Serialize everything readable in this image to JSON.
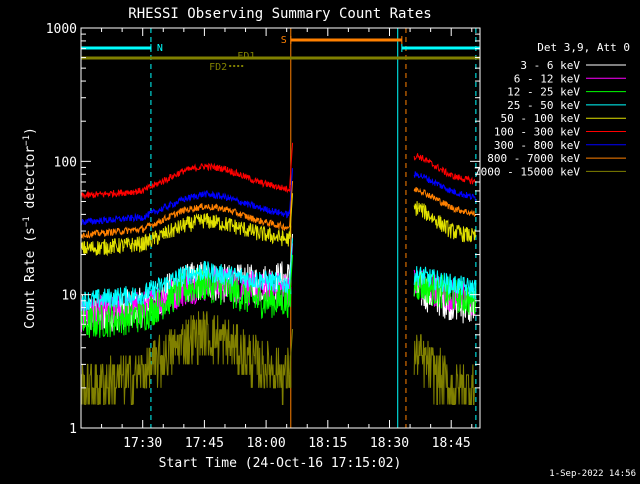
{
  "chart_data": {
    "type": "line",
    "title": "RHESSI Observing Summary Count Rates",
    "xlabel": "Start Time (24-Oct-16 17:15:02)",
    "ylabel": "Count Rate (s⁻¹ detector⁻¹)",
    "yscale": "log",
    "ylim": [
      1,
      1000
    ],
    "xlim": [
      "17:15",
      "18:52"
    ],
    "x_ticks": [
      "17:30",
      "17:45",
      "18:00",
      "18:15",
      "18:30",
      "18:45"
    ],
    "y_ticks": [
      "1",
      "10",
      "100",
      "1000"
    ],
    "timestamp": "1-Sep-2022 14:56",
    "legend": {
      "placement": "top-right",
      "header": "Det 3,9, Att 0",
      "entries": [
        {
          "label": "3 - 6 keV",
          "color": "#ffffff"
        },
        {
          "label": "6 - 12 keV",
          "color": "#ff00ff"
        },
        {
          "label": "12 - 25 keV",
          "color": "#00ff00"
        },
        {
          "label": "25 - 50 keV",
          "color": "#00ffff"
        },
        {
          "label": "50 - 100 keV",
          "color": "#e0e000"
        },
        {
          "label": "100 - 300 keV",
          "color": "#ff0000"
        },
        {
          "label": "300 - 800 keV",
          "color": "#0000ff"
        },
        {
          "label": "800 - 7000 keV",
          "color": "#ff8000"
        },
        {
          "label": "7000 - 15000 keV",
          "color": "#808000"
        }
      ]
    },
    "state_flags": [
      {
        "label": "N",
        "color": "#00ffff",
        "segments": [
          [
            "17:15",
            "17:32"
          ],
          [
            "18:33",
            "18:52"
          ]
        ]
      },
      {
        "label": "S",
        "color": "#ff8000",
        "segments": [
          [
            "18:06",
            "18:33"
          ]
        ]
      },
      {
        "label": "FD1",
        "color": "#808000",
        "segments": [
          [
            "17:15",
            "18:52"
          ]
        ]
      },
      {
        "label": "FD2",
        "color": "#808000",
        "segments": [
          [
            "17:52",
            "17:53"
          ]
        ]
      }
    ],
    "vertical_markers": [
      {
        "time": "17:15",
        "color": "#00ffff",
        "style": "solid"
      },
      {
        "time": "17:32",
        "color": "#00ffff",
        "style": "dashed"
      },
      {
        "time": "18:06",
        "color": "#ff8000",
        "style": "solid"
      },
      {
        "time": "18:32",
        "color": "#00ffff",
        "style": "solid"
      },
      {
        "time": "18:34",
        "color": "#ff8000",
        "style": "dashed"
      },
      {
        "time": "18:51",
        "color": "#00ffff",
        "style": "dashed"
      }
    ],
    "series": [
      {
        "name": "3 - 6 keV",
        "color": "#ffffff",
        "points": [
          [
            "17:15",
            7
          ],
          [
            "17:30",
            8
          ],
          [
            "17:40",
            12
          ],
          [
            "17:45",
            13
          ],
          [
            "17:50",
            12
          ],
          [
            "17:58",
            12
          ],
          [
            "18:05",
            13
          ],
          [
            "18:37",
            11
          ],
          [
            "18:45",
            9
          ],
          [
            "18:51",
            8
          ]
        ]
      },
      {
        "name": "6 - 12 keV",
        "color": "#ff00ff",
        "points": [
          [
            "17:15",
            7
          ],
          [
            "17:30",
            8
          ],
          [
            "17:40",
            11
          ],
          [
            "17:45",
            12
          ],
          [
            "17:50",
            12
          ],
          [
            "17:58",
            11
          ],
          [
            "18:05",
            11
          ],
          [
            "18:37",
            12
          ],
          [
            "18:45",
            10
          ],
          [
            "18:51",
            9
          ]
        ]
      },
      {
        "name": "12 - 25 keV",
        "color": "#00ff00",
        "points": [
          [
            "17:15",
            6
          ],
          [
            "17:30",
            7
          ],
          [
            "17:40",
            11
          ],
          [
            "17:45",
            12
          ],
          [
            "17:50",
            11
          ],
          [
            "17:58",
            9
          ],
          [
            "18:05",
            9
          ],
          [
            "18:37",
            12
          ],
          [
            "18:45",
            10
          ],
          [
            "18:51",
            9
          ]
        ]
      },
      {
        "name": "25 - 50 keV",
        "color": "#00ffff",
        "points": [
          [
            "17:15",
            9
          ],
          [
            "17:30",
            10
          ],
          [
            "17:40",
            14
          ],
          [
            "17:45",
            15
          ],
          [
            "17:50",
            14
          ],
          [
            "17:58",
            13
          ],
          [
            "18:05",
            12
          ],
          [
            "18:37",
            14
          ],
          [
            "18:45",
            12
          ],
          [
            "18:51",
            11
          ]
        ]
      },
      {
        "name": "50 - 100 keV",
        "color": "#e0e000",
        "points": [
          [
            "17:15",
            22
          ],
          [
            "17:30",
            24
          ],
          [
            "17:40",
            33
          ],
          [
            "17:45",
            36
          ],
          [
            "17:50",
            34
          ],
          [
            "17:58",
            29
          ],
          [
            "18:05",
            26
          ],
          [
            "18:37",
            45
          ],
          [
            "18:45",
            30
          ],
          [
            "18:51",
            27
          ]
        ]
      },
      {
        "name": "100 - 300 keV",
        "color": "#ff0000",
        "points": [
          [
            "17:15",
            55
          ],
          [
            "17:30",
            60
          ],
          [
            "17:40",
            85
          ],
          [
            "17:45",
            92
          ],
          [
            "17:50",
            88
          ],
          [
            "17:58",
            70
          ],
          [
            "18:05",
            62
          ],
          [
            "18:37",
            110
          ],
          [
            "18:45",
            78
          ],
          [
            "18:51",
            70
          ]
        ]
      },
      {
        "name": "300 - 800 keV",
        "color": "#0000ff",
        "points": [
          [
            "17:15",
            35
          ],
          [
            "17:30",
            38
          ],
          [
            "17:40",
            52
          ],
          [
            "17:45",
            57
          ],
          [
            "17:50",
            54
          ],
          [
            "17:58",
            45
          ],
          [
            "18:05",
            40
          ],
          [
            "18:37",
            80
          ],
          [
            "18:45",
            60
          ],
          [
            "18:51",
            53
          ]
        ]
      },
      {
        "name": "800 - 7000 keV",
        "color": "#ff8000",
        "points": [
          [
            "17:15",
            28
          ],
          [
            "17:30",
            31
          ],
          [
            "17:40",
            43
          ],
          [
            "17:45",
            46
          ],
          [
            "17:50",
            44
          ],
          [
            "17:58",
            36
          ],
          [
            "18:05",
            32
          ],
          [
            "18:37",
            62
          ],
          [
            "18:45",
            45
          ],
          [
            "18:51",
            40
          ]
        ]
      },
      {
        "name": "7000 - 15000 keV",
        "color": "#808000",
        "points": [
          [
            "17:15",
            2
          ],
          [
            "17:30",
            2.5
          ],
          [
            "17:40",
            4.5
          ],
          [
            "17:45",
            5
          ],
          [
            "17:50",
            4.5
          ],
          [
            "17:58",
            3
          ],
          [
            "18:05",
            2.5
          ],
          [
            "18:37",
            3.5
          ],
          [
            "18:45",
            2
          ],
          [
            "18:51",
            2
          ]
        ]
      }
    ]
  }
}
